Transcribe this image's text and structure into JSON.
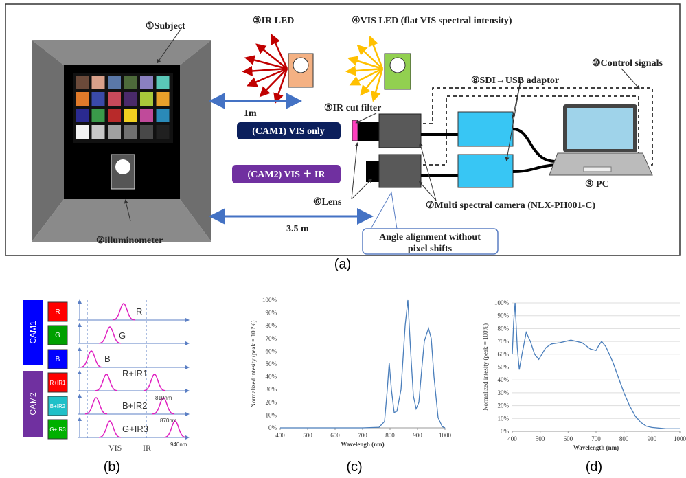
{
  "diagram": {
    "subject": "①Subject",
    "illuminometer": "②illuminometer",
    "ir_led": "③IR LED",
    "vis_led": "④VIS LED (flat VIS spectral intensity)",
    "distance_1": "1m",
    "ir_cut_filter": "⑤IR cut filter",
    "cam1": "(CAM1) VIS only",
    "cam2": "(CAM2) VIS ＋ IR",
    "lens": "⑥Lens",
    "camera": "⑦Multi spectral camera (NLX-PH001-C)",
    "adaptor": "⑧SDI→USB  adaptor",
    "pc": "⑨ PC",
    "control": "⑩Control signals",
    "distance_2": "3.5 m",
    "callout": [
      "Angle alignment without",
      "pixel shifts"
    ]
  },
  "bands": {
    "groups": [
      "CAM1",
      "CAM2"
    ],
    "filters": [
      "R",
      "G",
      "B",
      "R+IR1",
      "B+IR2",
      "G+IR3"
    ],
    "curves": [
      "R",
      "G",
      "B",
      "R+IR1",
      "B+IR2",
      "G+IR3"
    ],
    "wavelengths": [
      "810nm",
      "870nm",
      "940nm"
    ],
    "regions": [
      "VIS",
      "IR"
    ]
  },
  "captions": [
    "(a)",
    "(b)",
    "(c)",
    "(d)"
  ],
  "chart_data": [
    {
      "type": "line",
      "xlabel": "Wavelengh (nm)",
      "ylabel": "Normalized intesity (peak = 100%)",
      "xlim": [
        400,
        1000
      ],
      "xticks": [
        400,
        500,
        600,
        700,
        800,
        900,
        1000
      ],
      "ylim": [
        0,
        100
      ],
      "yticks": [
        {
          "value": 0,
          "label": "0%"
        },
        {
          "value": 10,
          "label": "10%"
        },
        {
          "value": 20,
          "label": "20%"
        },
        {
          "value": 30,
          "label": "30%"
        },
        {
          "value": 40,
          "label": "40%"
        },
        {
          "value": 50,
          "label": "50%"
        },
        {
          "value": 60,
          "label": "60%"
        },
        {
          "value": 70,
          "label": "70%"
        },
        {
          "value": 80,
          "label": "80%"
        },
        {
          "value": 90,
          "label": "90%"
        },
        {
          "value": 100,
          "label": "100%"
        }
      ],
      "grid": false,
      "x": [
        400,
        500,
        600,
        700,
        760,
        780,
        790,
        797,
        805,
        815,
        825,
        840,
        855,
        865,
        875,
        885,
        895,
        905,
        915,
        925,
        940,
        950,
        960,
        975,
        990,
        1000
      ],
      "series": [
        {
          "color": "#4a7ebb",
          "values": [
            0,
            0,
            0,
            0,
            0.5,
            5,
            30,
            51,
            30,
            12,
            13,
            30,
            80,
            100,
            60,
            25,
            15,
            20,
            45,
            68,
            78,
            70,
            40,
            8,
            1,
            0
          ]
        }
      ]
    },
    {
      "type": "line",
      "xlabel": "Wavelength (nm)",
      "ylabel": "Normalized intesity (peak = 100%)",
      "xlim": [
        400,
        1000
      ],
      "xticks": [
        400,
        500,
        600,
        700,
        800,
        900,
        1000
      ],
      "ylim": [
        0,
        100
      ],
      "yticks": [
        {
          "value": 0,
          "label": "0%"
        },
        {
          "value": 10,
          "label": "10%"
        },
        {
          "value": 20,
          "label": "20%"
        },
        {
          "value": 30,
          "label": "30%"
        },
        {
          "value": 40,
          "label": "40%"
        },
        {
          "value": 50,
          "label": "50%"
        },
        {
          "value": 60,
          "label": "60%"
        },
        {
          "value": 70,
          "label": "70%"
        },
        {
          "value": 80,
          "label": "80%"
        },
        {
          "value": 90,
          "label": "90%"
        },
        {
          "value": 100,
          "label": "100%"
        }
      ],
      "grid": true,
      "x": [
        400,
        405,
        410,
        418,
        425,
        435,
        450,
        465,
        480,
        495,
        520,
        540,
        570,
        610,
        650,
        680,
        700,
        710,
        720,
        735,
        760,
        780,
        800,
        820,
        840,
        860,
        880,
        900,
        950,
        1000
      ],
      "series": [
        {
          "color": "#4a7ebb",
          "values": [
            60,
            85,
            100,
            65,
            48,
            60,
            77,
            70,
            60,
            56,
            65,
            68,
            69,
            71,
            69,
            64,
            63,
            67,
            70,
            66,
            54,
            42,
            30,
            20,
            12,
            7,
            4,
            3,
            2,
            2
          ]
        }
      ]
    }
  ]
}
